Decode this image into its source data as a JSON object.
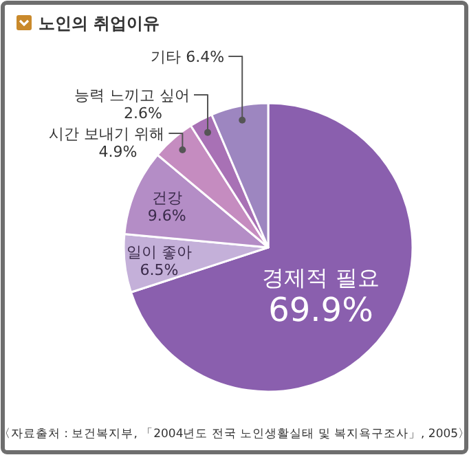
{
  "chart_data": {
    "type": "pie",
    "title": "노인의 취업이유",
    "categories": [
      "경제적 필요",
      "일이 좋아",
      "건강",
      "시간 보내기 위해",
      "능력 느끼고 싶어",
      "기타"
    ],
    "values": [
      69.9,
      6.5,
      9.6,
      4.9,
      2.6,
      6.4
    ],
    "colors": [
      "#8a5fae",
      "#c4b0d9",
      "#b48dc6",
      "#c58cc0",
      "#a871b5",
      "#9d86c0"
    ],
    "value_labels": [
      "69.9%",
      "6.5%",
      "9.6%",
      "4.9%",
      "2.6%",
      "6.4%"
    ],
    "annotations": [
      "〈자료출처 : 보건복지부, 「2004년도 전국 노인생활실태 및 복지욕구조사」, 2005〉"
    ]
  }
}
